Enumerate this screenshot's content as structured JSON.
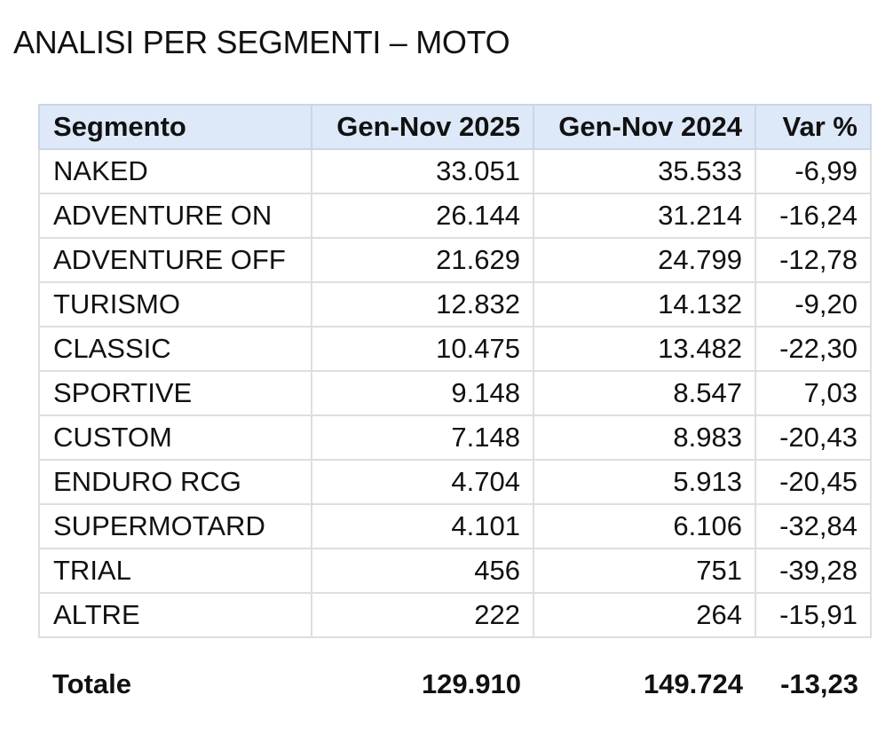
{
  "title": "ANALISI PER SEGMENTI – MOTO",
  "table": {
    "headers": [
      "Segmento",
      "Gen-Nov 2025",
      "Gen-Nov 2024",
      "Var %"
    ],
    "rows": [
      [
        "NAKED",
        "33.051",
        "35.533",
        "-6,99"
      ],
      [
        "ADVENTURE ON",
        "26.144",
        "31.214",
        "-16,24"
      ],
      [
        "ADVENTURE OFF",
        "21.629",
        "24.799",
        "-12,78"
      ],
      [
        "TURISMO",
        "12.832",
        "14.132",
        "-9,20"
      ],
      [
        "CLASSIC",
        "10.475",
        "13.482",
        "-22,30"
      ],
      [
        "SPORTIVE",
        "9.148",
        "8.547",
        "7,03"
      ],
      [
        "CUSTOM",
        "7.148",
        "8.983",
        "-20,43"
      ],
      [
        "ENDURO RCG",
        "4.704",
        "5.913",
        "-20,45"
      ],
      [
        "SUPERMOTARD",
        "4.101",
        "6.106",
        "-32,84"
      ],
      [
        "TRIAL",
        "456",
        "751",
        "-39,28"
      ],
      [
        "ALTRE",
        "222",
        "264",
        "-15,91"
      ]
    ],
    "total": [
      "Totale",
      "129.910",
      "149.724",
      "-13,23"
    ]
  },
  "colors": {
    "header_bg": "#dde9f8",
    "grid": "#dedede",
    "text": "#111111"
  }
}
